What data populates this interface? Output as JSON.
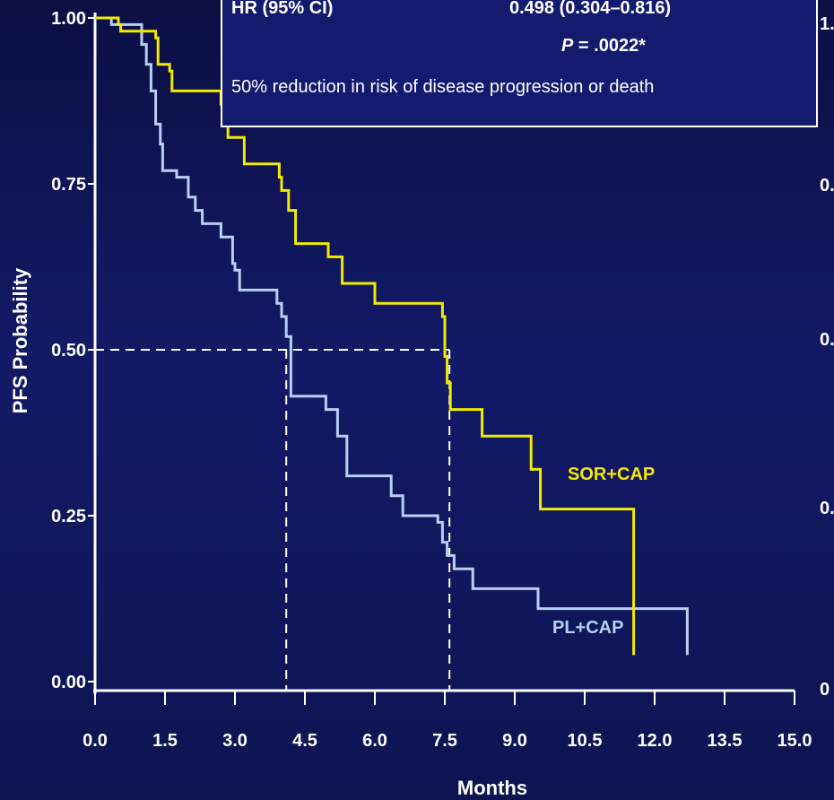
{
  "colors": {
    "background": "#101660",
    "sor": "#f2ea00",
    "pl": "#b8cff2",
    "axis": "#ffffff",
    "dashed": "#ffffff"
  },
  "chart_data": {
    "type": "line",
    "step": true,
    "xlabel": "Months",
    "ylabel": "PFS  Probability",
    "xlim": [
      0,
      15
    ],
    "ylim": [
      0,
      1
    ],
    "xticks": [
      "0.0",
      "1.5",
      "3.0",
      "4.5",
      "6.0",
      "7.5",
      "9.0",
      "10.5",
      "12.0",
      "13.5",
      "15.0"
    ],
    "yticks": [
      "0.00",
      "0.25",
      "0.50",
      "0.75",
      "1.00"
    ],
    "grid": false,
    "series": [
      {
        "name": "SOR+CAP",
        "color": "#f2ea00",
        "x": [
          0,
          0.5,
          0.55,
          1.3,
          1.35,
          1.6,
          1.65,
          2.7,
          2.85,
          3.2,
          3.95,
          4.0,
          4.15,
          4.3,
          5.0,
          5.3,
          6.0,
          7.45,
          7.5,
          7.55,
          7.62,
          8.3,
          9.35,
          9.55,
          11.55,
          11.55
        ],
        "y": [
          1.0,
          0.99,
          0.98,
          0.97,
          0.93,
          0.92,
          0.89,
          0.87,
          0.82,
          0.78,
          0.76,
          0.74,
          0.71,
          0.66,
          0.64,
          0.6,
          0.57,
          0.55,
          0.49,
          0.45,
          0.41,
          0.37,
          0.32,
          0.26,
          0.26,
          0.04
        ]
      },
      {
        "name": "PL+CAP",
        "color": "#b8cff2",
        "x": [
          0,
          0.35,
          1.0,
          1.1,
          1.2,
          1.3,
          1.4,
          1.45,
          1.75,
          2.0,
          2.15,
          2.3,
          2.7,
          2.95,
          3.0,
          3.1,
          3.9,
          4.0,
          4.1,
          4.2,
          4.95,
          5.2,
          5.4,
          6.35,
          6.6,
          7.35,
          7.45,
          7.55,
          7.7,
          8.1,
          9.5,
          12.7,
          12.7
        ],
        "y": [
          1.0,
          0.99,
          0.96,
          0.93,
          0.89,
          0.84,
          0.81,
          0.77,
          0.76,
          0.73,
          0.71,
          0.69,
          0.67,
          0.63,
          0.62,
          0.59,
          0.57,
          0.55,
          0.52,
          0.43,
          0.41,
          0.37,
          0.31,
          0.28,
          0.25,
          0.24,
          0.21,
          0.19,
          0.17,
          0.14,
          0.11,
          0.11,
          0.04
        ]
      }
    ],
    "median_lines": [
      {
        "x": 4.1,
        "y": 0.5
      },
      {
        "x": 7.6,
        "y": 0.5
      }
    ],
    "annotations": {
      "hr_label": "HR (95% CI)",
      "hr_value": "0.498 (0.304–0.816)",
      "p_letter": "P",
      "p_rest": " = .0022*",
      "risk_text": "50% reduction in risk of disease progression or death"
    },
    "right_axis_ticks": [
      "1.",
      "0.",
      "0.",
      "0.",
      "0"
    ]
  }
}
